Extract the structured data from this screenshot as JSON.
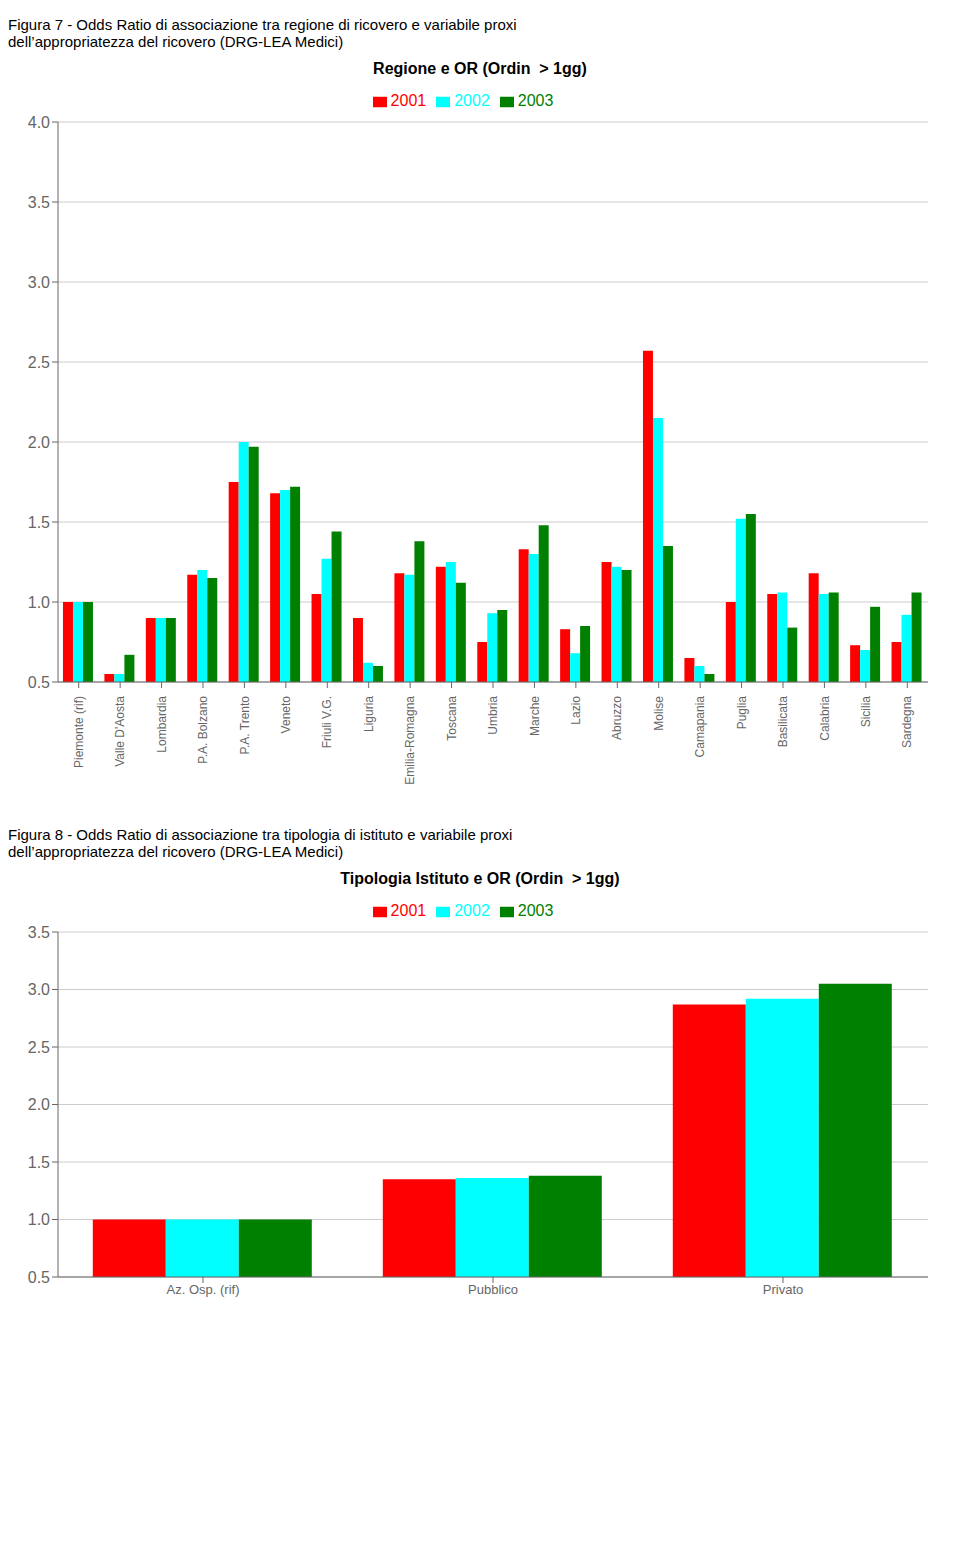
{
  "chart_data": [
    {
      "type": "bar",
      "title": "Regione e OR (Ordin  > 1gg)",
      "subtitle": "Figura 7 - Odds Ratio di associazione tra regione di ricovero e variabile proxi\ndell’appropriatezza del ricovero (DRG-LEA Medici)",
      "categories": [
        "Piemonte (rif)",
        "Valle D'Aosta",
        "Lombardia",
        "P.A. Bolzano",
        "P.A. Trento",
        "Veneto",
        "Friuli V.G.",
        "Liguria",
        "Emilia-Romagna",
        "Toscana",
        "Umbria",
        "Marche",
        "Lazio",
        "Abruzzo",
        "Molise",
        "Camapania",
        "Puglia",
        "Basilicata",
        "Calabria",
        "Sicilia",
        "Sardegna"
      ],
      "series": [
        {
          "name": "2001",
          "color": "#ff0000",
          "values": [
            1.0,
            0.55,
            0.9,
            1.17,
            1.75,
            1.68,
            1.05,
            0.9,
            1.18,
            1.22,
            0.75,
            1.33,
            0.83,
            1.25,
            2.57,
            0.65,
            1.0,
            1.05,
            1.18,
            0.73,
            0.75
          ]
        },
        {
          "name": "2002",
          "color": "#00ffff",
          "values": [
            1.0,
            0.55,
            0.9,
            1.2,
            2.0,
            1.7,
            1.27,
            0.62,
            1.17,
            1.25,
            0.93,
            1.3,
            0.68,
            1.22,
            2.15,
            0.6,
            1.52,
            1.06,
            1.05,
            0.7,
            0.92
          ]
        },
        {
          "name": "2003",
          "color": "#008000",
          "values": [
            1.0,
            0.67,
            0.9,
            1.15,
            1.97,
            1.72,
            1.44,
            0.6,
            1.38,
            1.12,
            0.95,
            1.48,
            0.85,
            1.2,
            1.35,
            0.55,
            1.55,
            0.84,
            1.06,
            0.97,
            1.06
          ]
        }
      ],
      "ylim": [
        0.5,
        4.0
      ],
      "yticks": [
        0.5,
        {
          "value": 1.0,
          "label": "1.0"
        },
        1.5,
        {
          "value": 2.0,
          "label": "2.0"
        },
        2.5,
        {
          "value": 3.0,
          "label": "3.0"
        },
        3.5,
        {
          "value": 4.0,
          "label": "4.0"
        }
      ],
      "grid": true,
      "legend": "top"
    },
    {
      "type": "bar",
      "title": "Tipologia Istituto e OR (Ordin  > 1gg)",
      "subtitle": "Figura 8 - Odds Ratio di associazione tra tipologia di istituto e variabile proxi\ndell’appropriatezza del ricovero (DRG-LEA Medici)",
      "categories": [
        "Az. Osp. (rif)",
        "Pubblico",
        "Privato"
      ],
      "series": [
        {
          "name": "2001",
          "color": "#ff0000",
          "values": [
            1.0,
            1.35,
            2.87
          ]
        },
        {
          "name": "2002",
          "color": "#00ffff",
          "values": [
            1.0,
            1.36,
            2.92
          ]
        },
        {
          "name": "2003",
          "color": "#008000",
          "values": [
            1.0,
            1.38,
            3.05
          ]
        }
      ],
      "ylim": [
        0.5,
        3.5
      ],
      "yticks": [
        0.5,
        {
          "value": 1.0,
          "label": "1.0"
        },
        1.5,
        {
          "value": 2.0,
          "label": "2.0"
        },
        2.5,
        {
          "value": 3.0,
          "label": "3.0"
        },
        3.5
      ],
      "grid": true,
      "legend": "top"
    }
  ]
}
